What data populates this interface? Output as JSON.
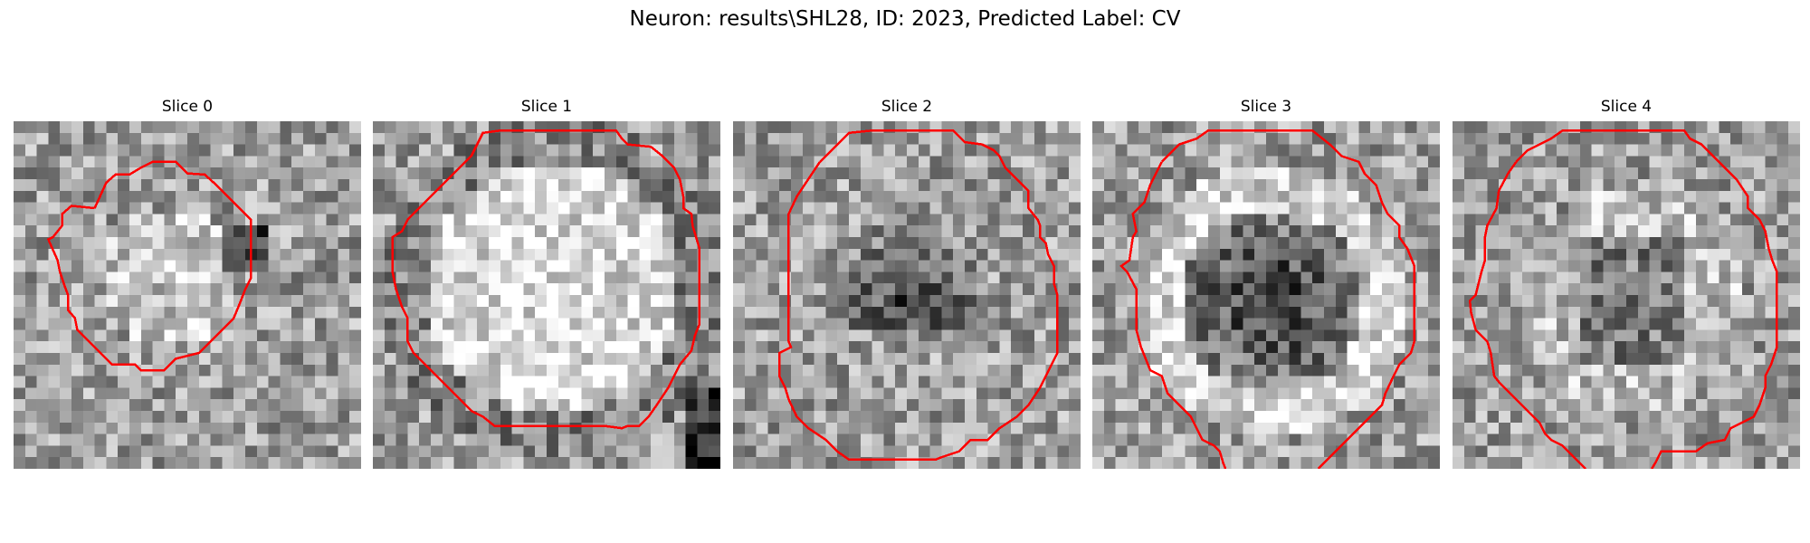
{
  "figure": {
    "suptitle": "Neuron: results\\SHL28, ID: 2023, Predicted Label: CV",
    "contour_color": "#ff0000",
    "colormap": "gray",
    "grid_size": 30
  },
  "panels": [
    {
      "title": "Slice 0",
      "seed": 11,
      "pattern": "small_bright_center"
    },
    {
      "title": "Slice 1",
      "seed": 23,
      "pattern": "large_bright_ring"
    },
    {
      "title": "Slice 2",
      "seed": 37,
      "pattern": "dark_center"
    },
    {
      "title": "Slice 3",
      "seed": 41,
      "pattern": "dark_center_bright_ring"
    },
    {
      "title": "Slice 4",
      "seed": 53,
      "pattern": "faint_dark_center"
    }
  ]
}
